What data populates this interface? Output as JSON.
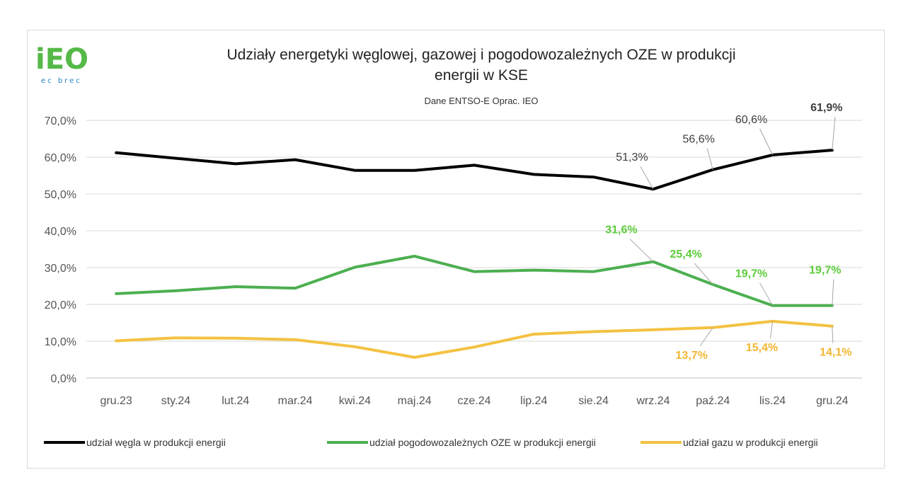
{
  "logo": {
    "brand": "iEO",
    "tagline": "ec brec",
    "primary_color": "#55b947",
    "secondary_color": "#1b7fc4"
  },
  "chart_data": {
    "type": "line",
    "title_line1": "Udziały energetyki węglowej, gazowej i pogodowozależnych OZE w produkcji",
    "title_line2": "energii w  KSE",
    "subtitle": "Dane ENTSO-E Oprac. IEO",
    "categories": [
      "gru.23",
      "sty.24",
      "lut.24",
      "mar.24",
      "kwi.24",
      "maj.24",
      "cze.24",
      "lip.24",
      "sie.24",
      "wrz.24",
      "paź.24",
      "lis.24",
      "gru.24"
    ],
    "ylim": [
      0,
      70
    ],
    "yticks": [
      "0,0%",
      "10,0%",
      "20,0%",
      "30,0%",
      "40,0%",
      "50,0%",
      "60,0%",
      "70,0%"
    ],
    "grid": true,
    "legend_position": "bottom",
    "series": [
      {
        "name": "udział węgla w produkcji energii",
        "color": "#000000",
        "values": [
          61.2,
          59.7,
          58.2,
          59.3,
          56.4,
          56.4,
          57.8,
          55.3,
          54.6,
          51.3,
          56.6,
          60.6,
          61.9
        ],
        "labels": [
          {
            "index": 9,
            "text": "51,3%",
            "bold": false
          },
          {
            "index": 10,
            "text": "56,6%",
            "bold": false
          },
          {
            "index": 11,
            "text": "60,6%",
            "bold": false
          },
          {
            "index": 12,
            "text": "61,9%",
            "bold": true
          }
        ]
      },
      {
        "name": "udział pogodowozależnych OZE w produkcji  energii",
        "color": "#4caf50",
        "values": [
          22.9,
          23.7,
          24.8,
          24.4,
          30.1,
          33.1,
          28.9,
          29.3,
          28.9,
          31.6,
          25.4,
          19.7,
          19.7
        ],
        "labels": [
          {
            "index": 9,
            "text": "31,6%",
            "bold": true
          },
          {
            "index": 10,
            "text": "25,4%",
            "bold": true
          },
          {
            "index": 11,
            "text": "19,7%",
            "bold": true
          },
          {
            "index": 12,
            "text": "19,7%",
            "bold": true
          }
        ]
      },
      {
        "name": "udział gazu w produkcji energii",
        "color": "#f4c242",
        "values": [
          10.1,
          10.9,
          10.8,
          10.4,
          8.5,
          5.6,
          8.4,
          11.9,
          12.6,
          13.1,
          13.7,
          15.4,
          14.1
        ],
        "labels": [
          {
            "index": 10,
            "text": "13,7%",
            "bold": true
          },
          {
            "index": 11,
            "text": "15,4%",
            "bold": true
          },
          {
            "index": 12,
            "text": "14,1%",
            "bold": true
          }
        ]
      }
    ]
  }
}
